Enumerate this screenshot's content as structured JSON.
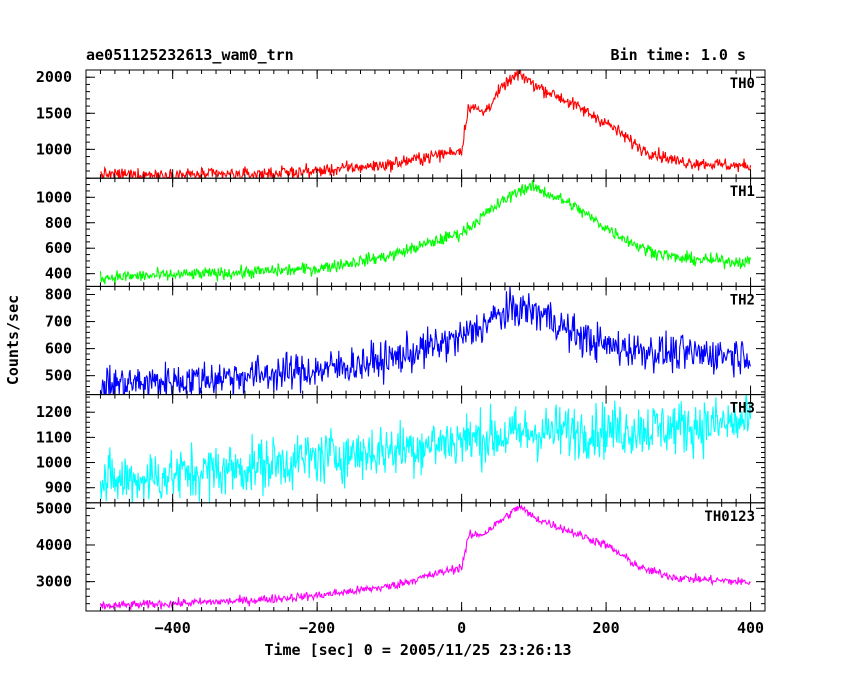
{
  "header": {
    "title": "ae051125232613_wam0_trn",
    "bin_time": "Bin time: 1.0 s"
  },
  "axes": {
    "ylabel": "Counts/sec",
    "xlabel": "Time [sec] 0 = 2005/11/25 23:26:13"
  },
  "chart_data": {
    "type": "line",
    "shared_x": {
      "range": [
        -520,
        420
      ],
      "major_ticks": [
        -400,
        -200,
        0,
        200,
        400
      ],
      "tick_labels": [
        "−400",
        "−200",
        "0",
        "200",
        "400"
      ],
      "data_range": [
        -500,
        400
      ],
      "step": 1.0
    },
    "panels": [
      {
        "name": "TH0",
        "color": "#ff0000",
        "ylim": [
          600,
          2100
        ],
        "yticks": [
          1000,
          1500,
          2000
        ],
        "yminor": 100,
        "tick_labels": [
          "1000",
          "1500",
          "2000"
        ],
        "profile": [
          [
            -500,
            650
          ],
          [
            -300,
            650
          ],
          [
            -200,
            700
          ],
          [
            -100,
            790
          ],
          [
            0,
            990
          ],
          [
            10,
            1620
          ],
          [
            30,
            1500
          ],
          [
            60,
            1900
          ],
          [
            80,
            2050
          ],
          [
            100,
            1900
          ],
          [
            140,
            1700
          ],
          [
            200,
            1370
          ],
          [
            250,
            1000
          ],
          [
            300,
            830
          ],
          [
            400,
            760
          ]
        ],
        "noise": 45
      },
      {
        "name": "TH1",
        "color": "#00ff00",
        "ylim": [
          300,
          1150
        ],
        "yticks": [
          400,
          600,
          800,
          1000
        ],
        "yminor": 50,
        "tick_labels": [
          "400",
          "600",
          "800",
          "1000"
        ],
        "profile": [
          [
            -500,
            370
          ],
          [
            -300,
            410
          ],
          [
            -200,
            440
          ],
          [
            -100,
            540
          ],
          [
            0,
            720
          ],
          [
            40,
            900
          ],
          [
            80,
            1060
          ],
          [
            100,
            1080
          ],
          [
            150,
            950
          ],
          [
            200,
            760
          ],
          [
            250,
            600
          ],
          [
            300,
            520
          ],
          [
            400,
            490
          ]
        ],
        "noise": 25
      },
      {
        "name": "TH2",
        "color": "#0000ff",
        "ylim": [
          430,
          830
        ],
        "yticks": [
          500,
          600,
          700,
          800
        ],
        "yminor": 20,
        "tick_labels": [
          "500",
          "600",
          "700",
          "800"
        ],
        "profile": [
          [
            -500,
            465
          ],
          [
            -400,
            480
          ],
          [
            -300,
            500
          ],
          [
            -200,
            520
          ],
          [
            -100,
            560
          ],
          [
            0,
            640
          ],
          [
            50,
            720
          ],
          [
            80,
            750
          ],
          [
            120,
            720
          ],
          [
            150,
            660
          ],
          [
            200,
            610
          ],
          [
            300,
            580
          ],
          [
            400,
            580
          ]
        ],
        "noise": 35
      },
      {
        "name": "TH3",
        "color": "#00ffff",
        "ylim": [
          840,
          1270
        ],
        "yticks": [
          900,
          1000,
          1100,
          1200
        ],
        "yminor": 20,
        "tick_labels": [
          "900",
          "1000",
          "1100",
          "1200"
        ],
        "profile": [
          [
            -500,
            920
          ],
          [
            -400,
            950
          ],
          [
            -300,
            980
          ],
          [
            -200,
            1020
          ],
          [
            -100,
            1050
          ],
          [
            0,
            1090
          ],
          [
            100,
            1120
          ],
          [
            200,
            1130
          ],
          [
            300,
            1140
          ],
          [
            400,
            1160
          ]
        ],
        "noise": 55
      },
      {
        "name": "TH0123",
        "color": "#ff00ff",
        "ylim": [
          2200,
          5150
        ],
        "yticks": [
          3000,
          4000,
          5000
        ],
        "yminor": 200,
        "tick_labels": [
          "3000",
          "4000",
          "5000"
        ],
        "profile": [
          [
            -500,
            2330
          ],
          [
            -300,
            2480
          ],
          [
            -200,
            2620
          ],
          [
            -100,
            2870
          ],
          [
            0,
            3400
          ],
          [
            10,
            4250
          ],
          [
            30,
            4300
          ],
          [
            60,
            4750
          ],
          [
            80,
            5050
          ],
          [
            100,
            4750
          ],
          [
            140,
            4450
          ],
          [
            200,
            4000
          ],
          [
            250,
            3350
          ],
          [
            300,
            3100
          ],
          [
            400,
            2980
          ]
        ],
        "noise": 60
      }
    ]
  }
}
